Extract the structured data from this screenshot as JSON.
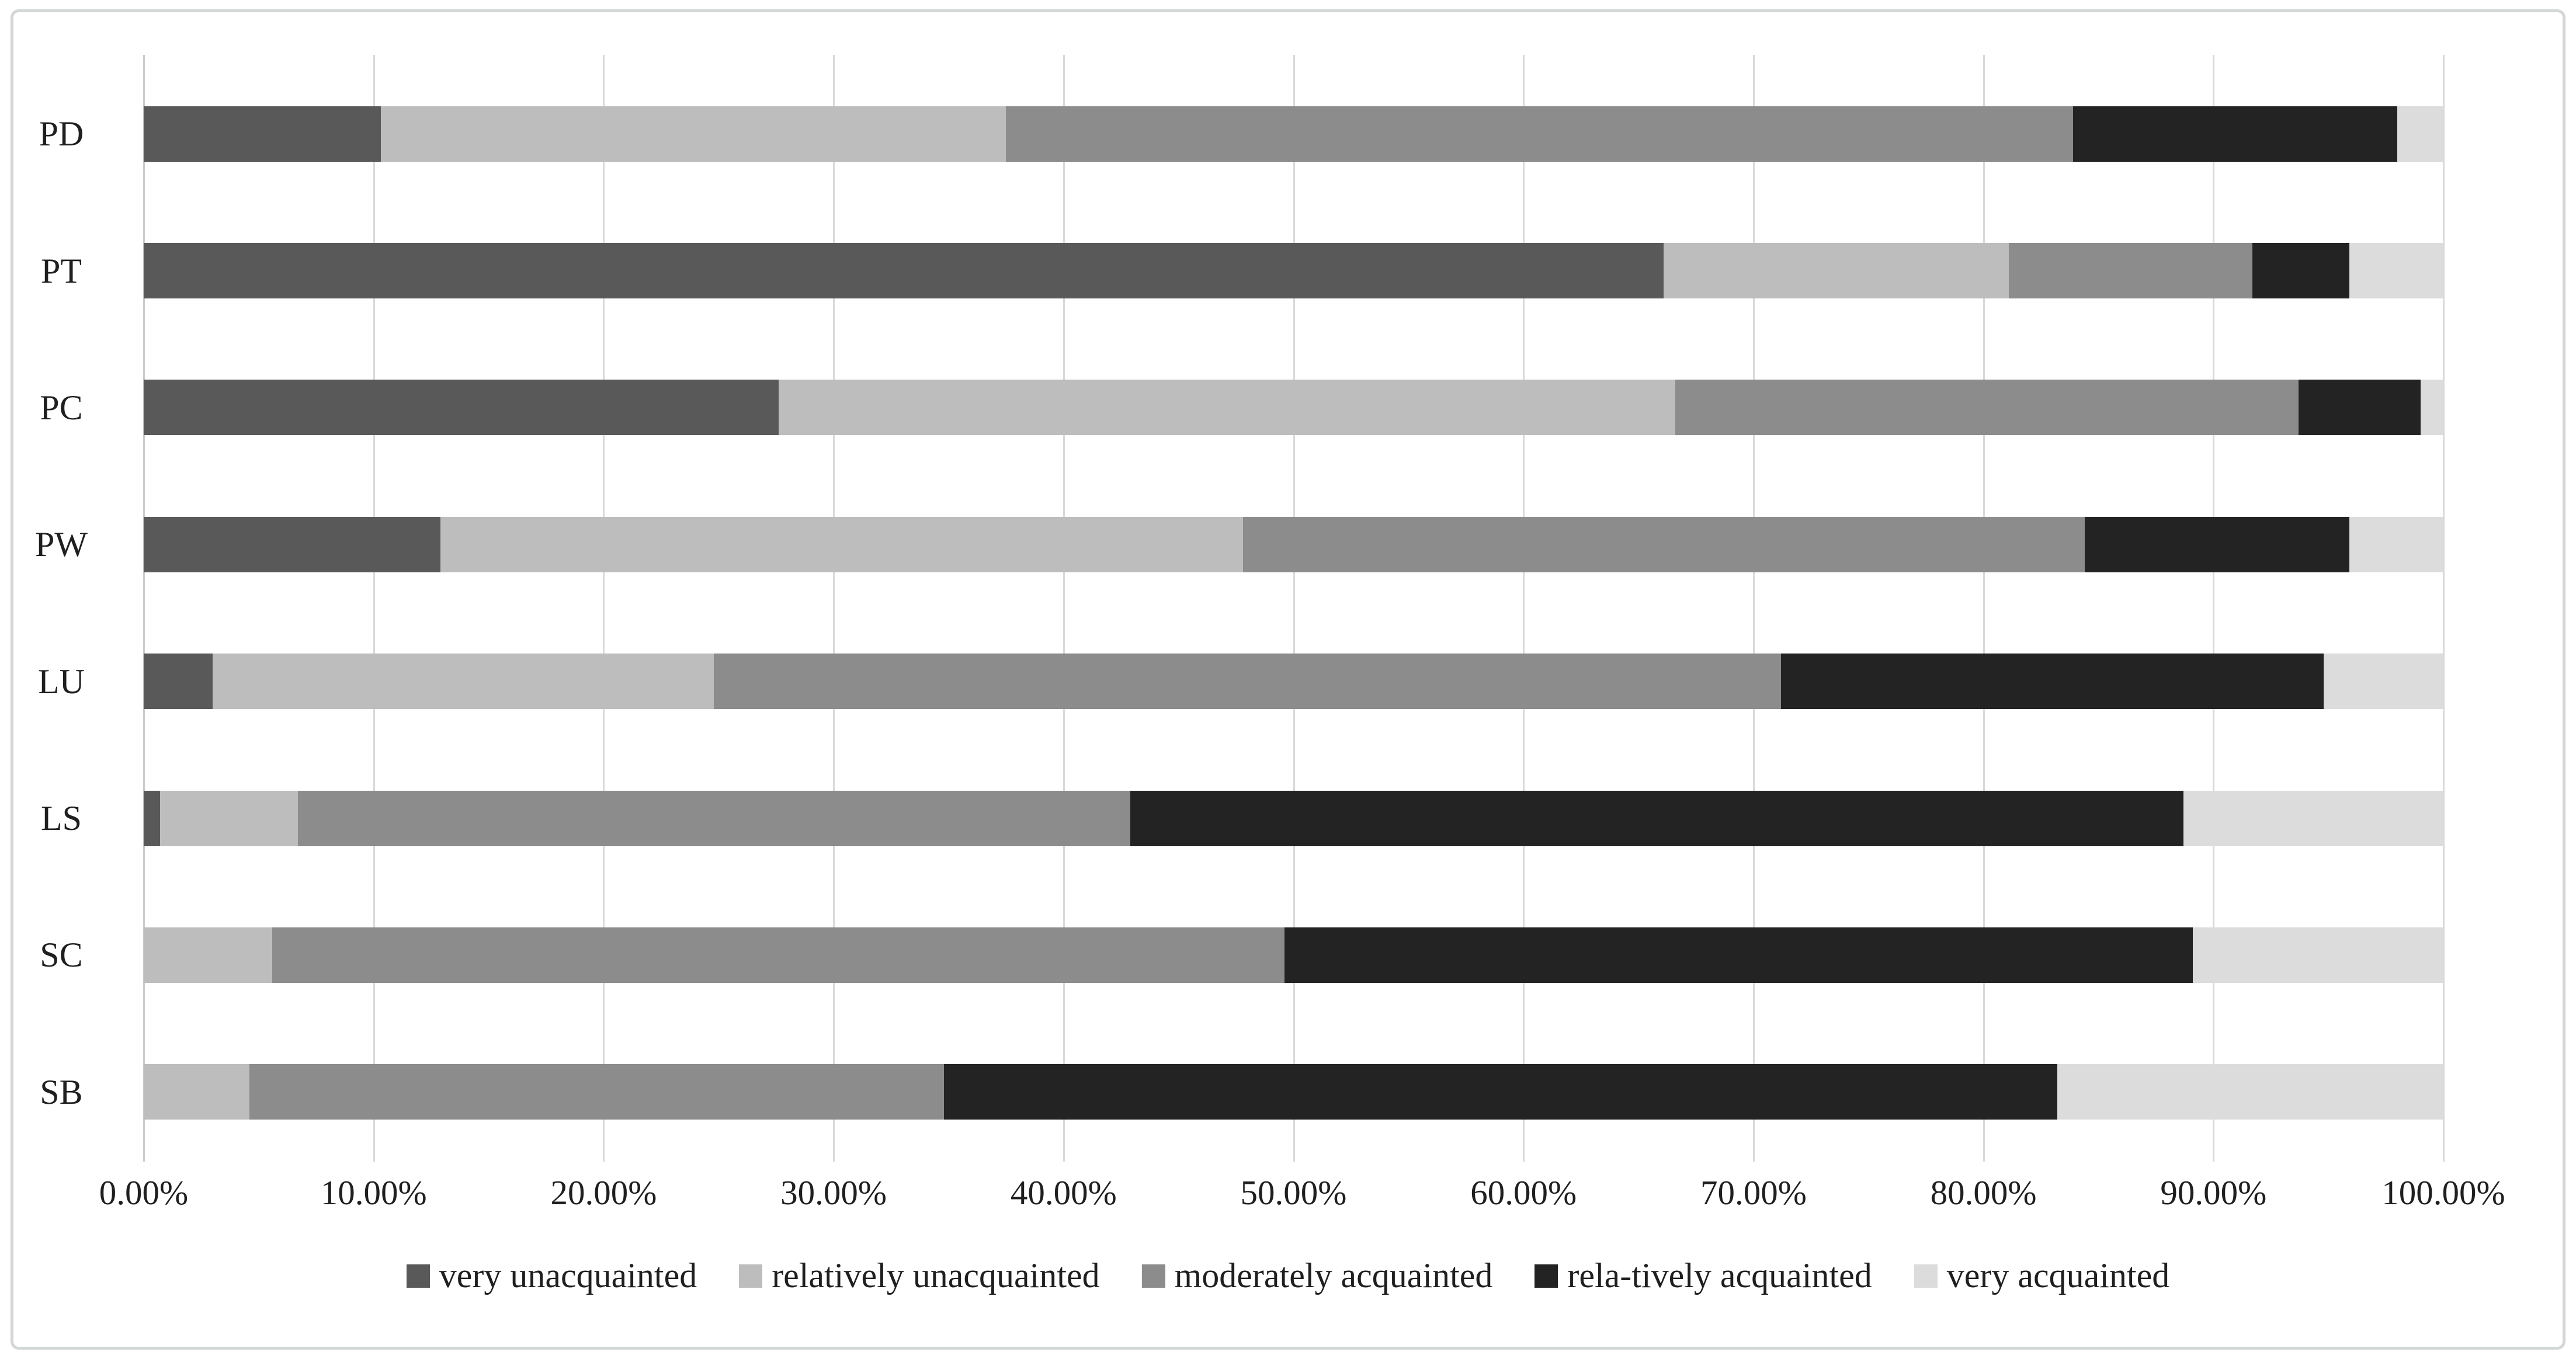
{
  "chart_data": {
    "type": "bar",
    "orientation": "horizontal-stacked-100",
    "title": "",
    "xlabel": "",
    "ylabel": "",
    "categories": [
      "PD",
      "PT",
      "PC",
      "PW",
      "LU",
      "LS",
      "SC",
      "SB"
    ],
    "series": [
      {
        "name": "very unacquainted",
        "color": "#595959",
        "values": [
          10.3,
          66.1,
          27.6,
          12.9,
          3.0,
          0.7,
          0.0,
          0.0
        ]
      },
      {
        "name": "relatively unacquainted",
        "color": "#bdbdbd",
        "values": [
          27.2,
          15.0,
          39.0,
          34.9,
          21.8,
          6.0,
          5.6,
          4.6
        ]
      },
      {
        "name": "moderately acquainted",
        "color": "#8c8c8c",
        "values": [
          46.4,
          10.6,
          27.1,
          36.6,
          46.4,
          36.2,
          44.0,
          30.2
        ]
      },
      {
        "name": "rela-tively acquainted",
        "color": "#232323",
        "values": [
          14.1,
          4.2,
          5.3,
          11.5,
          23.6,
          45.8,
          39.5,
          48.4
        ]
      },
      {
        "name": "very acquainted",
        "color": "#dcdcdc",
        "values": [
          2.0,
          4.1,
          1.0,
          4.1,
          5.2,
          11.3,
          10.9,
          16.8
        ]
      }
    ],
    "x_axis": {
      "min": 0,
      "max": 100,
      "tick_labels": [
        "0.00%",
        "10.00%",
        "20.00%",
        "30.00%",
        "40.00%",
        "50.00%",
        "60.00%",
        "70.00%",
        "80.00%",
        "90.00%",
        "100.00%"
      ]
    },
    "grid": true,
    "grid_color": "#d9d9d9",
    "legend_position": "bottom"
  }
}
